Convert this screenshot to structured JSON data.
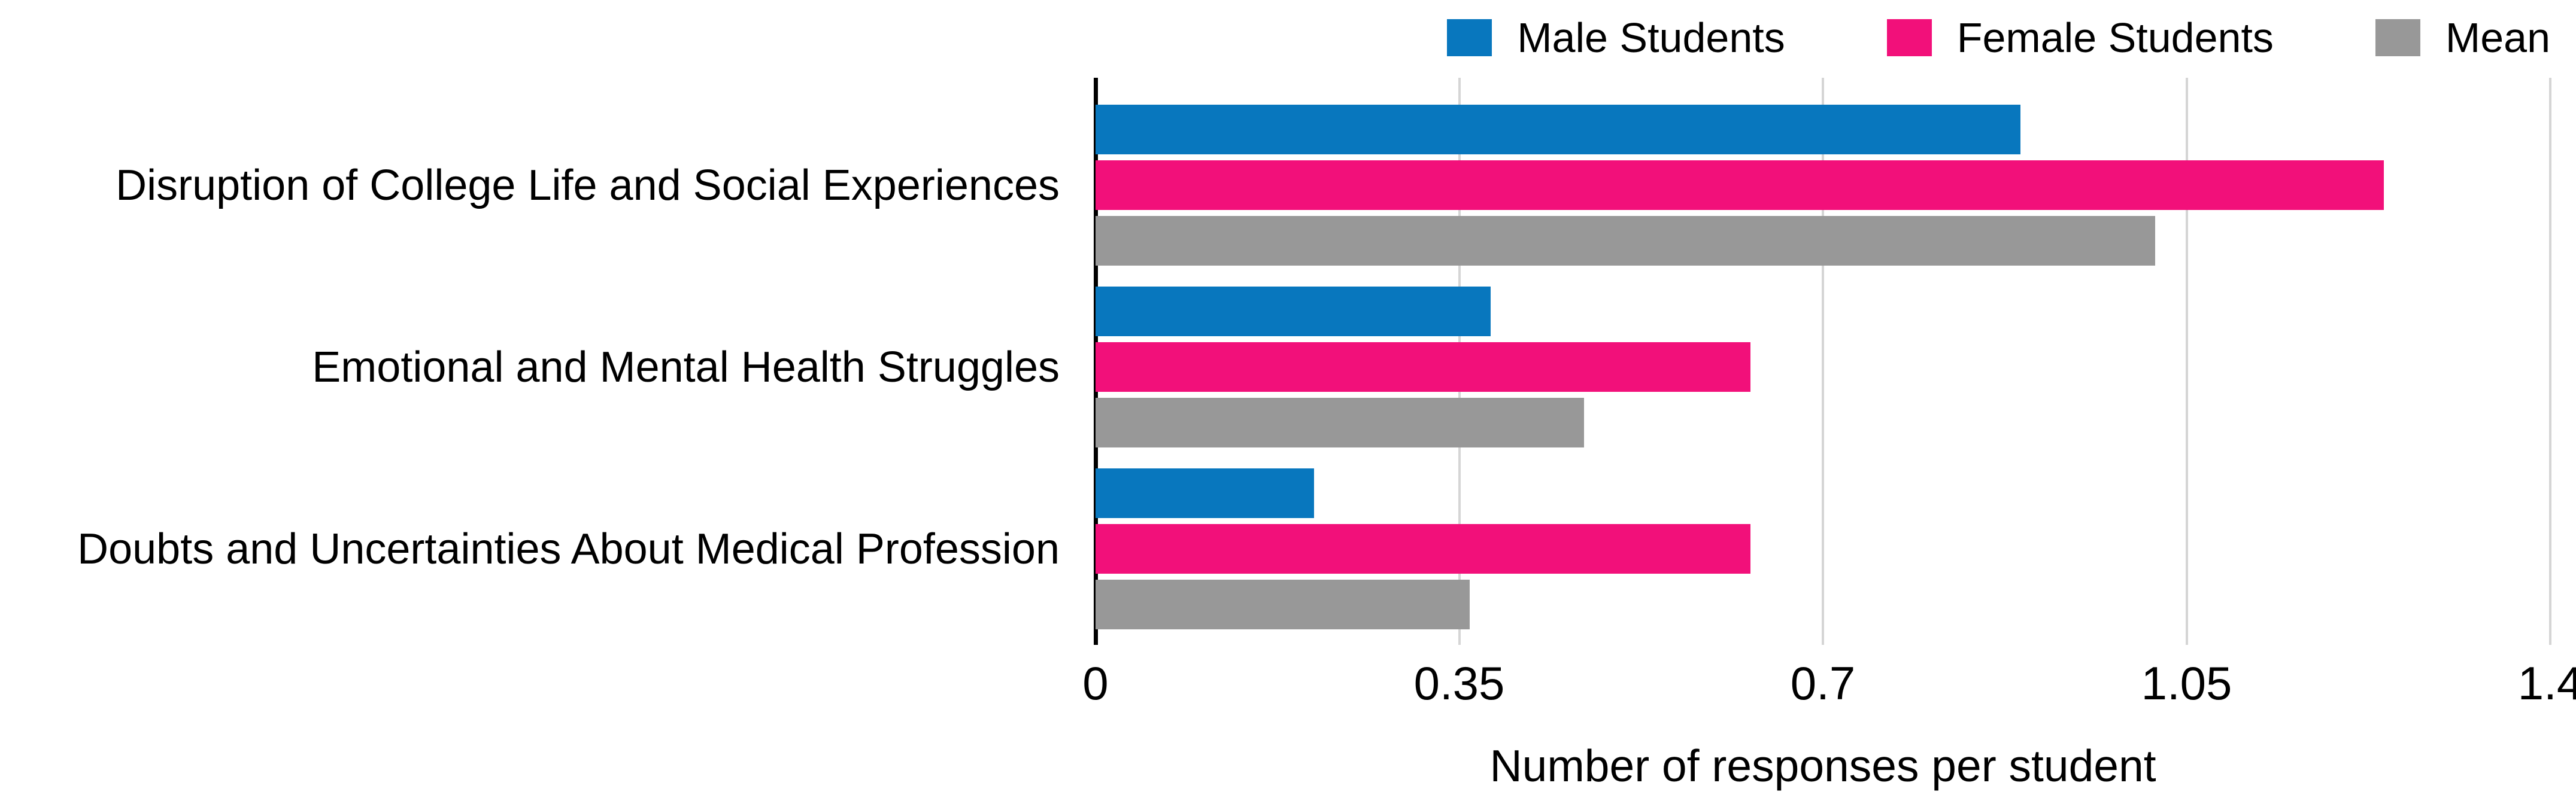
{
  "chart_data": {
    "type": "bar",
    "orientation": "horizontal",
    "title": "",
    "xlabel": "Number of responses per student",
    "ylabel": "",
    "categories": [
      "Disruption of College Life and Social Experiences",
      "Emotional and Mental Health Struggles",
      "Doubts and Uncertainties About Medical Profession"
    ],
    "series": [
      {
        "name": "Male Students",
        "color": "#0877BE",
        "values": [
          0.89,
          0.38,
          0.21
        ]
      },
      {
        "name": "Female Students",
        "color": "#F2107A",
        "values": [
          1.24,
          0.63,
          0.63
        ]
      },
      {
        "name": "Mean",
        "color": "#989898",
        "values": [
          1.02,
          0.47,
          0.36
        ]
      }
    ],
    "xlim": [
      0,
      1.4
    ],
    "x_tick_labels": [
      "0",
      "0.35",
      "0.7",
      "1.05",
      "1.4"
    ],
    "x_tick_values": [
      0,
      0.35,
      0.7,
      1.05,
      1.4
    ],
    "grid": "vertical",
    "legend_position": "top-right",
    "background": "#ffffff",
    "axis_color": "#000000",
    "gridline_color": "#d5d5d5"
  }
}
